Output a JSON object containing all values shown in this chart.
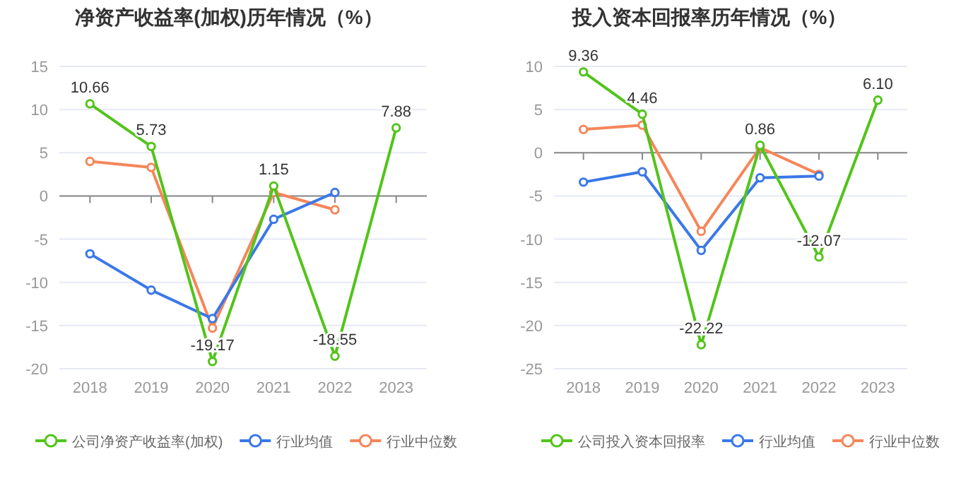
{
  "chart_data": [
    {
      "type": "line",
      "title": "净资产收益率(加权)历年情况（%）",
      "categories": [
        "2018",
        "2019",
        "2020",
        "2021",
        "2022",
        "2023"
      ],
      "ylim": [
        -20,
        15
      ],
      "yticks": [
        -20,
        -15,
        -10,
        -5,
        0,
        5,
        10,
        15
      ],
      "grid": "y",
      "legend": "bottom",
      "marker": "circle",
      "series": [
        {
          "name": "公司净资产收益率(加权)",
          "color": "#52c41a",
          "values": [
            10.66,
            5.73,
            -19.17,
            1.15,
            -18.55,
            7.88
          ],
          "value_labels": [
            "10.66",
            "5.73",
            "-19.17",
            "1.15",
            "-18.55",
            "7.88"
          ]
        },
        {
          "name": "行业均值",
          "color": "#3a78e8",
          "values": [
            -6.7,
            -10.9,
            -14.2,
            -2.7,
            0.4,
            null
          ]
        },
        {
          "name": "行业中位数",
          "color": "#f5865a",
          "values": [
            4.0,
            3.3,
            -15.3,
            0.4,
            -1.6,
            null
          ]
        }
      ]
    },
    {
      "type": "line",
      "title": "投入资本回报率历年情况（%）",
      "categories": [
        "2018",
        "2019",
        "2020",
        "2021",
        "2022",
        "2023"
      ],
      "ylim": [
        -25,
        10
      ],
      "yticks": [
        -25,
        -20,
        -15,
        -10,
        -5,
        0,
        5,
        10
      ],
      "grid": "y",
      "legend": "bottom",
      "marker": "circle",
      "series": [
        {
          "name": "公司投入资本回报率",
          "color": "#52c41a",
          "values": [
            9.36,
            4.46,
            -22.22,
            0.86,
            -12.07,
            6.1
          ],
          "value_labels": [
            "9.36",
            "4.46",
            "-22.22",
            "0.86",
            "-12.07",
            "6.10"
          ]
        },
        {
          "name": "行业均值",
          "color": "#3a78e8",
          "values": [
            -3.4,
            -2.2,
            -11.3,
            -2.9,
            -2.7,
            null
          ]
        },
        {
          "name": "行业中位数",
          "color": "#f5865a",
          "values": [
            2.7,
            3.2,
            -9.1,
            0.6,
            -2.5,
            null
          ]
        }
      ]
    }
  ]
}
